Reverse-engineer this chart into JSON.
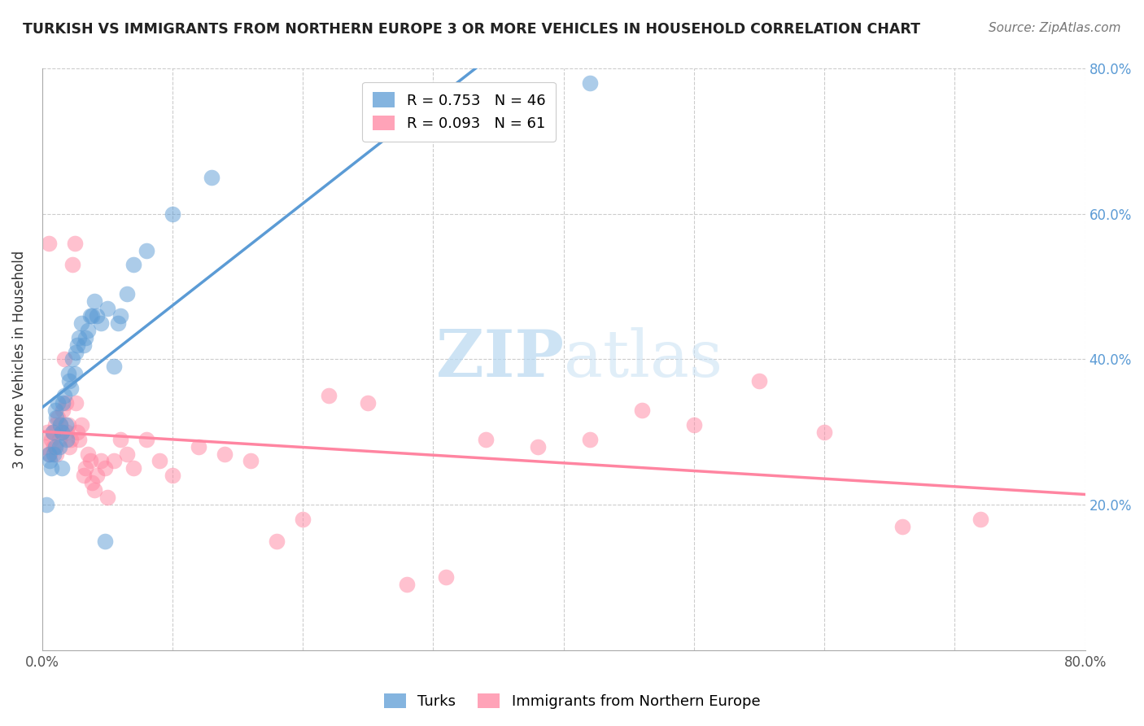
{
  "title": "TURKISH VS IMMIGRANTS FROM NORTHERN EUROPE 3 OR MORE VEHICLES IN HOUSEHOLD CORRELATION CHART",
  "source": "Source: ZipAtlas.com",
  "ylabel": "3 or more Vehicles in Household",
  "xmin": 0.0,
  "xmax": 0.8,
  "ymin": 0.0,
  "ymax": 0.8,
  "legend_blue_label": "R = 0.753   N = 46",
  "legend_pink_label": "R = 0.093   N = 61",
  "legend_turks": "Turks",
  "legend_northern_europe": "Immigrants from Northern Europe",
  "blue_color": "#5B9BD5",
  "pink_color": "#FF85A1",
  "watermark_zip": "ZIP",
  "watermark_atlas": "atlas",
  "blue_scatter_x": [
    0.003,
    0.005,
    0.006,
    0.007,
    0.008,
    0.009,
    0.01,
    0.01,
    0.011,
    0.012,
    0.013,
    0.014,
    0.015,
    0.015,
    0.016,
    0.017,
    0.018,
    0.019,
    0.02,
    0.021,
    0.022,
    0.023,
    0.025,
    0.026,
    0.027,
    0.028,
    0.03,
    0.032,
    0.033,
    0.035,
    0.037,
    0.038,
    0.04,
    0.042,
    0.045,
    0.048,
    0.05,
    0.055,
    0.058,
    0.06,
    0.065,
    0.07,
    0.08,
    0.1,
    0.13,
    0.42
  ],
  "blue_scatter_y": [
    0.2,
    0.27,
    0.26,
    0.25,
    0.3,
    0.27,
    0.28,
    0.33,
    0.32,
    0.34,
    0.28,
    0.31,
    0.25,
    0.3,
    0.34,
    0.35,
    0.31,
    0.29,
    0.38,
    0.37,
    0.36,
    0.4,
    0.38,
    0.41,
    0.42,
    0.43,
    0.45,
    0.42,
    0.43,
    0.44,
    0.46,
    0.46,
    0.48,
    0.46,
    0.45,
    0.15,
    0.47,
    0.39,
    0.45,
    0.46,
    0.49,
    0.53,
    0.55,
    0.6,
    0.65,
    0.78
  ],
  "pink_scatter_x": [
    0.002,
    0.004,
    0.005,
    0.006,
    0.007,
    0.008,
    0.009,
    0.01,
    0.011,
    0.012,
    0.013,
    0.014,
    0.015,
    0.016,
    0.017,
    0.018,
    0.019,
    0.02,
    0.021,
    0.022,
    0.023,
    0.025,
    0.026,
    0.027,
    0.028,
    0.03,
    0.032,
    0.033,
    0.035,
    0.037,
    0.038,
    0.04,
    0.042,
    0.045,
    0.048,
    0.05,
    0.055,
    0.06,
    0.065,
    0.07,
    0.08,
    0.09,
    0.1,
    0.12,
    0.14,
    0.16,
    0.18,
    0.2,
    0.22,
    0.25,
    0.28,
    0.31,
    0.34,
    0.38,
    0.42,
    0.46,
    0.5,
    0.55,
    0.6,
    0.66,
    0.72
  ],
  "pink_scatter_y": [
    0.28,
    0.3,
    0.56,
    0.27,
    0.29,
    0.3,
    0.28,
    0.31,
    0.27,
    0.32,
    0.29,
    0.31,
    0.3,
    0.33,
    0.4,
    0.34,
    0.3,
    0.31,
    0.28,
    0.29,
    0.53,
    0.56,
    0.34,
    0.3,
    0.29,
    0.31,
    0.24,
    0.25,
    0.27,
    0.26,
    0.23,
    0.22,
    0.24,
    0.26,
    0.25,
    0.21,
    0.26,
    0.29,
    0.27,
    0.25,
    0.29,
    0.26,
    0.24,
    0.28,
    0.27,
    0.26,
    0.15,
    0.18,
    0.35,
    0.34,
    0.09,
    0.1,
    0.29,
    0.28,
    0.29,
    0.33,
    0.31,
    0.37,
    0.3,
    0.17,
    0.18
  ]
}
